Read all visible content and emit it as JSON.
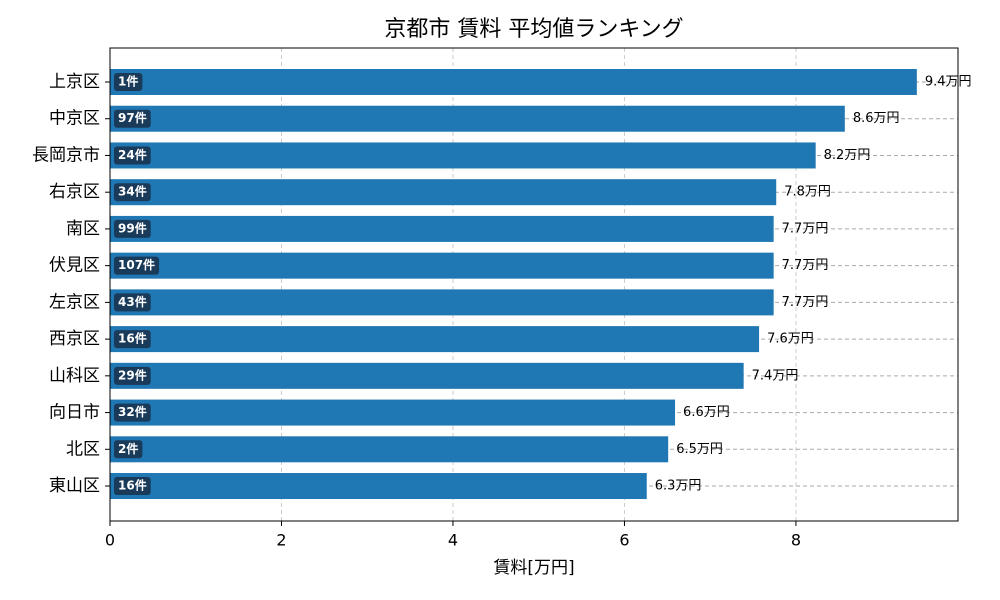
{
  "chart_data": {
    "type": "barh",
    "title": "京都市 賃料 平均値ランキング",
    "xlabel": "賃料[万円]",
    "categories": [
      "上京区",
      "中京区",
      "長岡京市",
      "右京区",
      "南区",
      "伏見区",
      "左京区",
      "西京区",
      "山科区",
      "向日市",
      "北区",
      "東山区"
    ],
    "values": [
      9.41,
      8.57,
      8.23,
      7.77,
      7.74,
      7.74,
      7.74,
      7.57,
      7.39,
      6.59,
      6.51,
      6.26
    ],
    "value_labels": [
      "9.4万円",
      "8.6万円",
      "8.2万円",
      "7.8万円",
      "7.7万円",
      "7.7万円",
      "7.7万円",
      "7.6万円",
      "7.4万円",
      "6.6万円",
      "6.5万円",
      "6.3万円"
    ],
    "count_labels": [
      "1件",
      "97件",
      "24件",
      "34件",
      "99件",
      "107件",
      "43件",
      "16件",
      "29件",
      "32件",
      "2件",
      "16件"
    ],
    "color": "#1f77b4",
    "badge_color": "#1a3a5a",
    "xlim": [
      0,
      9.89
    ],
    "xticks": [
      0,
      2,
      4,
      6,
      8
    ],
    "grid": true
  }
}
